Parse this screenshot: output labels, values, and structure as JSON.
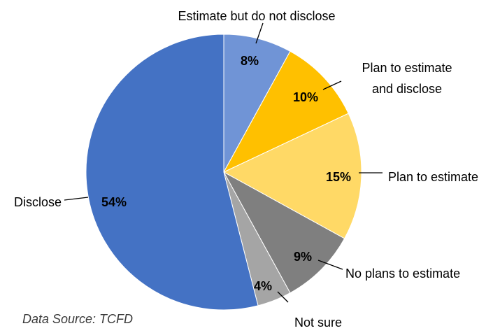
{
  "chart_data": {
    "type": "pie",
    "title": "",
    "start": "top",
    "direction": "clockwise",
    "slices": [
      {
        "label": "Estimate but do not disclose",
        "value": 8,
        "display": "8%",
        "color": "#7094D6"
      },
      {
        "label": "Plan to estimate and disclose",
        "value": 10,
        "display": "10%",
        "color": "#FFC000"
      },
      {
        "label": "Plan to estimate",
        "value": 15,
        "display": "15%",
        "color": "#FFD966"
      },
      {
        "label": "No plans to estimate",
        "value": 9,
        "display": "9%",
        "color": "#7F7F7F"
      },
      {
        "label": "Not sure",
        "value": 4,
        "display": "4%",
        "color": "#A5A5A5"
      },
      {
        "label": "Disclose",
        "value": 54,
        "display": "54%",
        "color": "#4472C4"
      }
    ]
  },
  "source_note": "Data Source: TCFD"
}
